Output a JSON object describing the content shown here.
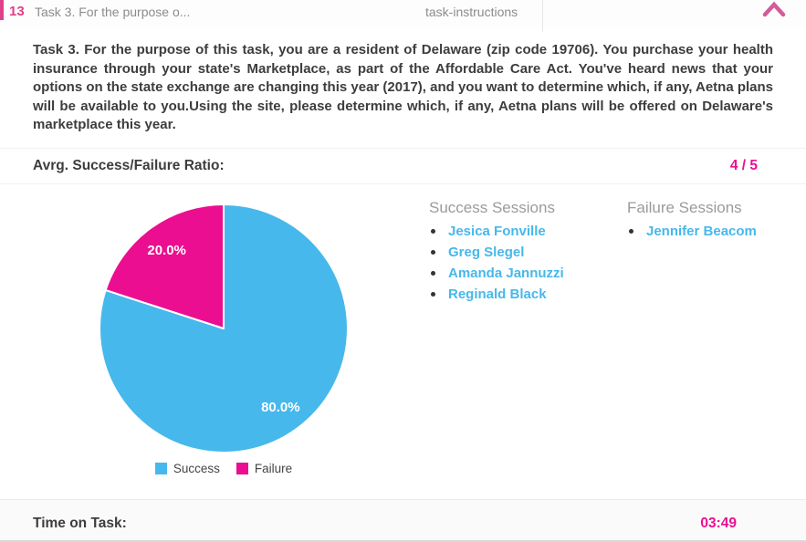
{
  "colors": {
    "accent_pink": "#ec0e90",
    "header_pink": "#e03d86",
    "chevron_pink": "#d25c99",
    "link_blue": "#47b8eb"
  },
  "header": {
    "index": "13",
    "title_truncated": "Task 3. For the purpose o...",
    "column_label": "task-instructions"
  },
  "task": {
    "description": "Task 3. For the purpose of this task, you are a resident of Delaware (zip code 19706). You purchase your health insurance through your state's Marketplace, as part of the Affordable Care Act. You've heard news that your options on the state exchange are changing this year (2017), and you want to determine which, if any, Aetna plans will be available to you.Using the site, please determine which, if any, Aetna plans will be offered on Delaware's marketplace this year."
  },
  "ratio": {
    "label": "Avrg. Success/Failure Ratio:",
    "value": "4 / 5"
  },
  "chart_data": {
    "type": "pie",
    "categories": [
      "Success",
      "Failure"
    ],
    "values": [
      80.0,
      20.0
    ],
    "slice_labels": [
      "80.0%",
      "20.0%"
    ],
    "colors": [
      "#47b8eb",
      "#ec0e90"
    ],
    "start_angle_deg": 0,
    "direction": "clockwise",
    "legend_position": "bottom",
    "title": ""
  },
  "sessions": {
    "success": {
      "heading": "Success Sessions",
      "names": [
        "Jesica Fonville",
        "Greg Slegel",
        "Amanda Jannuzzi",
        "Reginald Black"
      ]
    },
    "failure": {
      "heading": "Failure Sessions",
      "names": [
        "Jennifer Beacom"
      ]
    }
  },
  "time": {
    "label": "Time on Task:",
    "value": "03:49"
  }
}
